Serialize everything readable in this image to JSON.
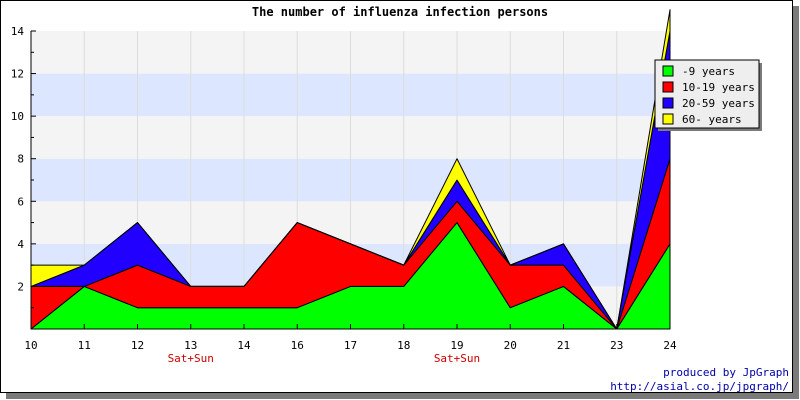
{
  "chart_data": {
    "type": "area",
    "stacked": true,
    "title": "The number of influenza infection persons",
    "xlabel": "",
    "ylabel": "",
    "categories": [
      "10",
      "11",
      "12",
      "13",
      "14",
      "16",
      "17",
      "18",
      "19",
      "20",
      "21",
      "23",
      "24"
    ],
    "weekend_labels": [
      {
        "category": "13",
        "label": "Sat+Sun"
      },
      {
        "category": "19",
        "label": "Sat+Sun"
      }
    ],
    "ylim": [
      0,
      14
    ],
    "yticks": [
      2,
      4,
      6,
      8,
      10,
      12,
      14
    ],
    "grid": true,
    "legend_position": "top-right",
    "series": [
      {
        "name": "-9 years",
        "color": "#00ff00",
        "values": [
          0,
          2,
          1,
          1,
          1,
          1,
          2,
          2,
          5,
          1,
          2,
          0,
          4
        ]
      },
      {
        "name": "10-19 years",
        "color": "#ff0000",
        "values": [
          2,
          0,
          2,
          1,
          1,
          4,
          2,
          1,
          1,
          2,
          1,
          0,
          4
        ]
      },
      {
        "name": "20-59 years",
        "color": "#2200ff",
        "values": [
          0,
          1,
          2,
          0,
          0,
          0,
          0,
          0,
          1,
          0,
          1,
          0,
          6
        ]
      },
      {
        "name": "60- years",
        "color": "#ffff00",
        "values": [
          1,
          0,
          0,
          0,
          0,
          0,
          0,
          0,
          1,
          0,
          0,
          0,
          1
        ]
      }
    ]
  },
  "credit": {
    "line1": "produced by JpGraph",
    "line2": "http://asial.co.jp/jpgraph/"
  }
}
